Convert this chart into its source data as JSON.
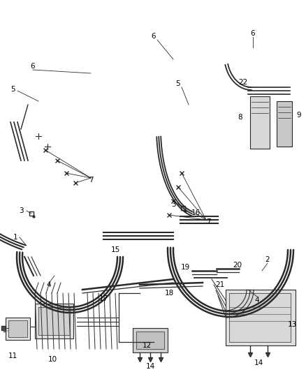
{
  "bg_color": "#ffffff",
  "line_color": "#2a2a2a",
  "label_color": "#000000",
  "figsize": [
    4.38,
    5.33
  ],
  "dpi": 100
}
